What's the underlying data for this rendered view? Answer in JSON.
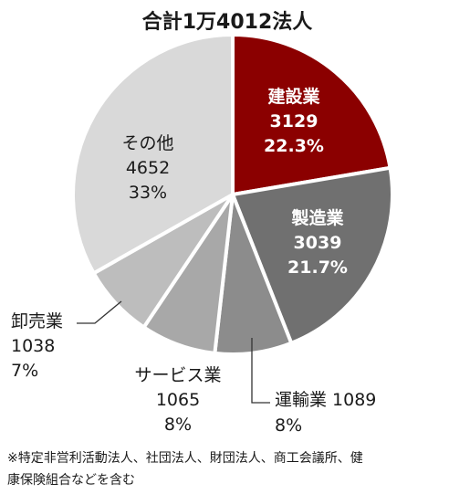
{
  "chart_data": {
    "type": "pie",
    "title": "合計1万4012法人",
    "slices": [
      {
        "name": "建設業",
        "value": 3129,
        "percent": "22.3%",
        "color": "#8b0000",
        "text_color": "#ffffff"
      },
      {
        "name": "製造業",
        "value": 3039,
        "percent": "21.7%",
        "color": "#707070",
        "text_color": "#ffffff"
      },
      {
        "name": "運輸業",
        "value": 1089,
        "percent": "8%",
        "color": "#8c8c8c",
        "text_color": "#1a1a1a"
      },
      {
        "name": "サービス業",
        "value": 1065,
        "percent": "8%",
        "color": "#a8a8a8",
        "text_color": "#1a1a1a"
      },
      {
        "name": "卸売業",
        "value": 1038,
        "percent": "7%",
        "color": "#bdbdbd",
        "text_color": "#1a1a1a"
      },
      {
        "name": "その他",
        "value": 4652,
        "percent": "33%",
        "color": "#d9d9d9",
        "text_color": "#1a1a1a"
      }
    ],
    "footnote_lines": [
      "※特定非営利活動法人、社団法人、財団法人、商工会議所、健",
      "康保険組合などを含む"
    ]
  }
}
